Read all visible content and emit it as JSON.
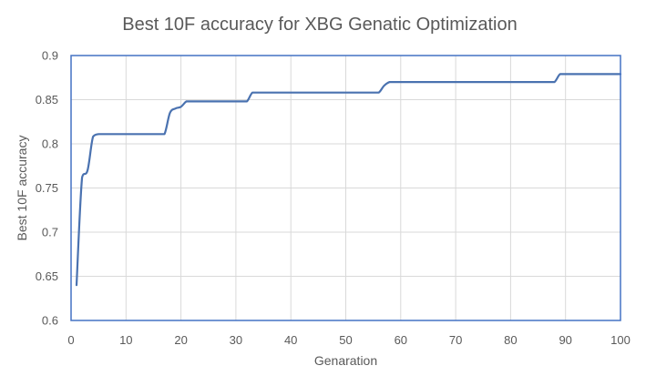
{
  "chart_data": {
    "type": "line",
    "title": "Best 10F accuracy for XBG Genatic Optimization",
    "xlabel": "Genaration",
    "ylabel": "Best 10F accuracy",
    "xlim": [
      0,
      100
    ],
    "ylim": [
      0.6,
      0.9
    ],
    "x_ticks": [
      0,
      10,
      20,
      30,
      40,
      50,
      60,
      70,
      80,
      90,
      100
    ],
    "y_ticks": [
      0.6,
      0.65,
      0.7,
      0.75,
      0.8,
      0.85,
      0.9
    ],
    "x_tick_labels": [
      "0",
      "10",
      "20",
      "30",
      "40",
      "50",
      "60",
      "70",
      "80",
      "90",
      "100"
    ],
    "y_tick_labels": [
      "0.6",
      "0.65",
      "0.7",
      "0.75",
      "0.8",
      "0.85",
      "0.9"
    ],
    "grid": "vertical and horizontal",
    "legend": "none",
    "series": [
      {
        "color": "#4a72b0",
        "x": [
          1,
          2,
          3,
          4,
          5,
          6,
          7,
          8,
          9,
          10,
          11,
          12,
          13,
          14,
          15,
          16,
          17,
          18,
          19,
          20,
          21,
          22,
          23,
          24,
          25,
          26,
          27,
          28,
          29,
          30,
          31,
          32,
          33,
          34,
          35,
          40,
          45,
          50,
          55,
          56,
          57,
          58,
          59,
          60,
          70,
          80,
          87,
          88,
          89,
          90,
          95,
          100
        ],
        "y": [
          0.64,
          0.762,
          0.77,
          0.808,
          0.811,
          0.811,
          0.811,
          0.811,
          0.811,
          0.811,
          0.811,
          0.811,
          0.811,
          0.811,
          0.811,
          0.811,
          0.811,
          0.835,
          0.84,
          0.842,
          0.848,
          0.848,
          0.848,
          0.848,
          0.848,
          0.848,
          0.848,
          0.848,
          0.848,
          0.848,
          0.848,
          0.848,
          0.858,
          0.858,
          0.858,
          0.858,
          0.858,
          0.858,
          0.858,
          0.858,
          0.866,
          0.87,
          0.87,
          0.87,
          0.87,
          0.87,
          0.87,
          0.87,
          0.879,
          0.879,
          0.879,
          0.879
        ]
      }
    ]
  }
}
